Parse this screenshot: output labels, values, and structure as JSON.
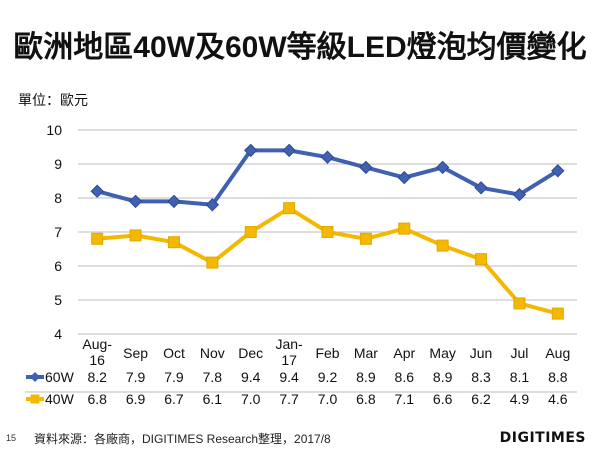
{
  "chart_data": {
    "type": "line",
    "title": "歐洲地區40W及60W等級LED燈泡均價變化",
    "unit_label": "單位：歐元",
    "categories": [
      [
        "Aug-",
        "16"
      ],
      [
        "Sep"
      ],
      [
        "Oct"
      ],
      [
        "Nov"
      ],
      [
        "Dec"
      ],
      [
        "Jan-",
        "17"
      ],
      [
        "Feb"
      ],
      [
        "Mar"
      ],
      [
        "Apr"
      ],
      [
        "May"
      ],
      [
        "Jun"
      ],
      [
        "Jul"
      ],
      [
        "Aug"
      ]
    ],
    "series": [
      {
        "name": "60W",
        "color": "#4060b0",
        "marker": "diamond",
        "values": [
          8.2,
          7.9,
          7.9,
          7.8,
          9.4,
          9.4,
          9.2,
          8.9,
          8.6,
          8.9,
          8.3,
          8.1,
          8.8
        ],
        "labels": [
          "8.2",
          "7.9",
          "7.9",
          "7.8",
          "9.4",
          "9.4",
          "9.2",
          "8.9",
          "8.6",
          "8.9",
          "8.3",
          "8.1",
          "8.8"
        ]
      },
      {
        "name": "40W",
        "color": "#f5b800",
        "marker": "square",
        "values": [
          6.8,
          6.9,
          6.7,
          6.1,
          7.0,
          7.7,
          7.0,
          6.8,
          7.1,
          6.6,
          6.2,
          4.9,
          4.6
        ],
        "labels": [
          "6.8",
          "6.9",
          "6.7",
          "6.1",
          "7.0",
          "7.7",
          "7.0",
          "6.8",
          "7.1",
          "6.6",
          "6.2",
          "4.9",
          "4.6"
        ]
      }
    ],
    "ylim": [
      4,
      10
    ],
    "yticks": [
      "4",
      "5",
      "6",
      "7",
      "8",
      "9",
      "10"
    ],
    "grid": true,
    "legend": "data-table-bottom",
    "data_table": true
  },
  "footer": {
    "page_number": "15",
    "source": "資料來源：各廠商，DIGITIMES Research整理，2017/8",
    "logo": "DIGITIMES"
  }
}
